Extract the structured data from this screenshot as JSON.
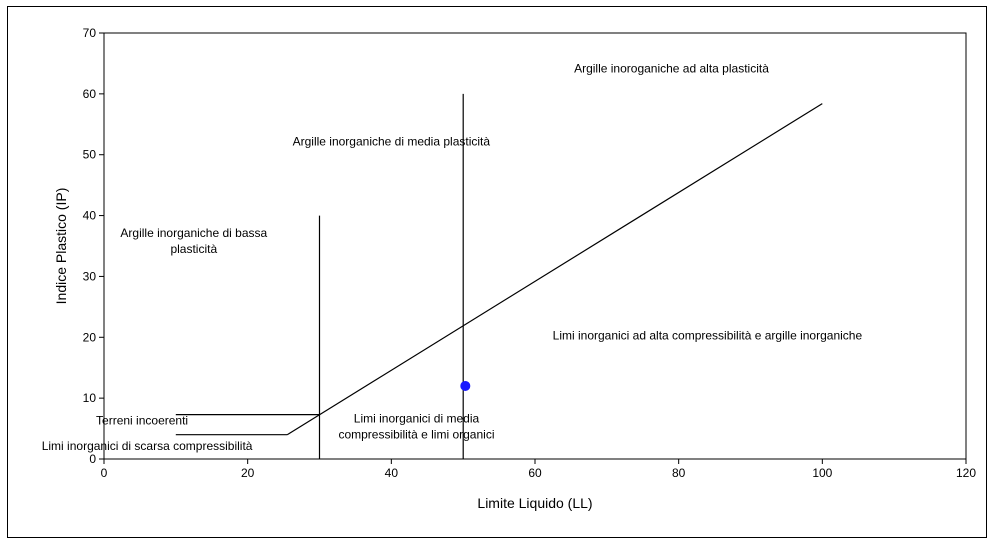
{
  "chart_data": {
    "type": "scatter",
    "xlabel": "Limite Liquido (LL)",
    "ylabel": "Indice Plastico (IP)",
    "xlim": [
      0,
      120
    ],
    "ylim": [
      0,
      70
    ],
    "xticks": [
      0,
      20,
      40,
      60,
      80,
      100,
      120
    ],
    "yticks": [
      0,
      10,
      20,
      30,
      40,
      50,
      60,
      70
    ],
    "grid": false,
    "points": [
      {
        "x": 50.3,
        "y": 12.0,
        "color": "#1a1aff"
      }
    ],
    "lines": [
      {
        "name": "A-line",
        "points": [
          [
            25.5,
            4.0
          ],
          [
            100.0,
            58.4
          ]
        ]
      },
      {
        "name": "LL 30",
        "points": [
          [
            30,
            0
          ],
          [
            30,
            40
          ]
        ]
      },
      {
        "name": "LL 50",
        "points": [
          [
            50,
            0
          ],
          [
            50,
            60
          ]
        ]
      },
      {
        "name": "IP 7",
        "points": [
          [
            10,
            7.3
          ],
          [
            30,
            7.3
          ]
        ]
      },
      {
        "name": "IP 4",
        "points": [
          [
            10,
            4.0
          ],
          [
            25.5,
            4.0
          ]
        ]
      }
    ],
    "region_labels": [
      {
        "lines": [
          "Argille inoroganiche ad alta plasticità"
        ],
        "x": 79,
        "y": 63.5
      },
      {
        "lines": [
          "Argille inorganiche di media plasticità"
        ],
        "x": 40,
        "y": 51.5
      },
      {
        "lines": [
          "Argille inorganiche di bassa",
          "plasticità"
        ],
        "x": 12.5,
        "y": 36.5
      },
      {
        "lines": [
          "Limi inorganici ad alta compressibilità e argille inorganiche"
        ],
        "x": 84,
        "y": 19.6
      },
      {
        "lines": [
          "Limi inorganici di media",
          "compressibilità e limi organici"
        ],
        "x": 43.5,
        "y": 6.0
      },
      {
        "lines": [
          "Terreni incoerenti"
        ],
        "x": 5.3,
        "y": 5.7
      },
      {
        "lines": [
          "Limi inorganici di scarsa compressibilità"
        ],
        "x": 6,
        "y": 1.5
      }
    ]
  }
}
